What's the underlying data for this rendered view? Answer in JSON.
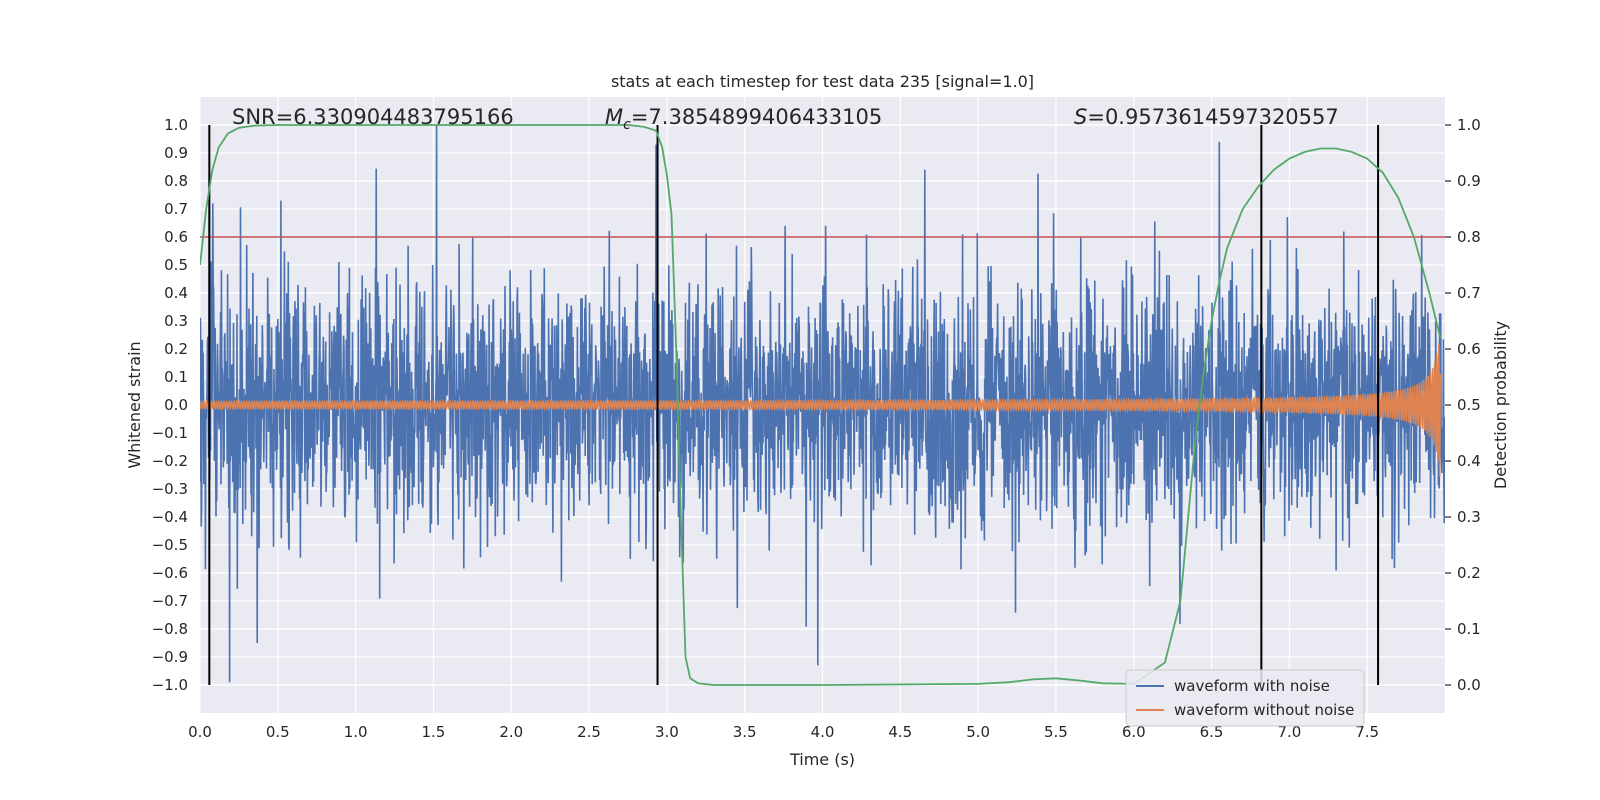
{
  "chart_data": {
    "type": "line",
    "title": "stats at each timestep for test data 235 [signal=1.0]",
    "xlabel": "Time (s)",
    "ylabel": "Whitened strain",
    "y2label": "Detection probability",
    "xlim": [
      0,
      8
    ],
    "ylim": [
      -1.1,
      1.1
    ],
    "y2lim": [
      -0.05,
      1.05
    ],
    "xticks": [
      "0.0",
      "0.5",
      "1.0",
      "1.5",
      "2.0",
      "2.5",
      "3.0",
      "3.5",
      "4.0",
      "4.5",
      "5.0",
      "5.5",
      "6.0",
      "6.5",
      "7.0",
      "7.5"
    ],
    "yticks": [
      "1.0",
      "0.9",
      "0.8",
      "0.7",
      "0.6",
      "0.5",
      "0.4",
      "0.3",
      "0.2",
      "0.1",
      "0.0",
      "-0.1",
      "-0.2",
      "-0.3",
      "-0.4",
      "-0.5",
      "-0.6",
      "-0.7",
      "-0.8",
      "-0.9",
      "-1.0"
    ],
    "y2ticks": [
      "1.0",
      "0.9",
      "0.8",
      "0.7",
      "0.6",
      "0.5",
      "0.4",
      "0.3",
      "0.2",
      "0.1",
      "0.0"
    ],
    "grid": true,
    "legend_position": "bottom-right",
    "annotations": {
      "snr": "SNR=6.330904483795166",
      "mc_symbol": "M",
      "mc_sub": "c",
      "mc_value": "=7.3854899406433105",
      "s_symbol": "S",
      "s_value": "=0.9573614597320557"
    },
    "threshold": {
      "value": 0.8,
      "axis": "right",
      "color": "#c44e52"
    },
    "vlines": [
      0.06,
      2.94,
      6.82,
      7.57
    ],
    "series": [
      {
        "name": "waveform with noise",
        "color": "#4c72b0",
        "axis": "left",
        "kind": "noise",
        "typical_amplitude": 0.4,
        "peaks": [
          [
            0.06,
            0.9
          ],
          [
            0.19,
            -0.99
          ],
          [
            1.52,
            1.0
          ],
          [
            2.93,
            0.93
          ],
          [
            3.97,
            -0.93
          ],
          [
            4.02,
            0.64
          ],
          [
            6.55,
            0.94
          ],
          [
            7.57,
            -0.93
          ]
        ]
      },
      {
        "name": "waveform without noise",
        "color": "#dd8452",
        "axis": "left",
        "kind": "chirp",
        "start_amplitude": 0.01,
        "end_amplitude": 0.28,
        "end_time": 7.97
      },
      {
        "name": "detection probability",
        "color": "#55a868",
        "axis": "right",
        "x": [
          0.0,
          0.04,
          0.08,
          0.12,
          0.18,
          0.25,
          0.35,
          0.5,
          1.0,
          2.0,
          2.6,
          2.75,
          2.85,
          2.93,
          2.97,
          3.0,
          3.03,
          3.06,
          3.09,
          3.12,
          3.15,
          3.2,
          3.3,
          4.0,
          5.0,
          5.2,
          5.35,
          5.5,
          5.65,
          5.8,
          6.0,
          6.2,
          6.3,
          6.35,
          6.4,
          6.45,
          6.5,
          6.55,
          6.6,
          6.7,
          6.8,
          6.9,
          7.0,
          7.1,
          7.2,
          7.3,
          7.4,
          7.5,
          7.6,
          7.7,
          7.8,
          7.9,
          7.97
        ],
        "y": [
          0.75,
          0.85,
          0.92,
          0.96,
          0.985,
          0.995,
          0.999,
          1.0,
          1.0,
          1.0,
          1.0,
          1.0,
          0.997,
          0.99,
          0.96,
          0.91,
          0.84,
          0.6,
          0.3,
          0.05,
          0.012,
          0.003,
          0.0,
          0.0,
          0.002,
          0.005,
          0.01,
          0.012,
          0.008,
          0.003,
          0.002,
          0.04,
          0.15,
          0.3,
          0.45,
          0.56,
          0.65,
          0.72,
          0.78,
          0.85,
          0.89,
          0.92,
          0.94,
          0.952,
          0.958,
          0.958,
          0.952,
          0.94,
          0.915,
          0.87,
          0.8,
          0.7,
          0.62
        ]
      }
    ]
  }
}
